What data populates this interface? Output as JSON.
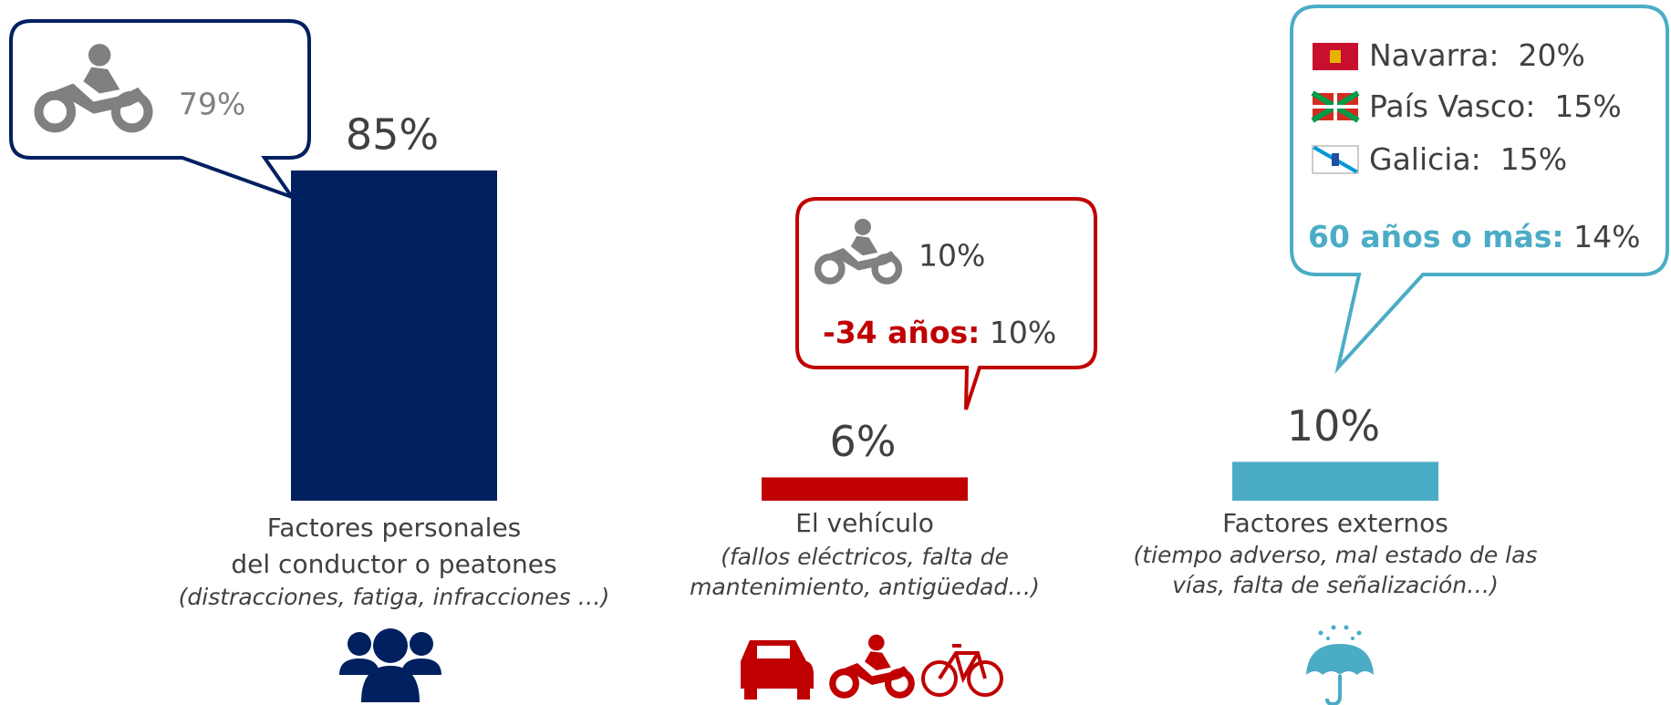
{
  "chart_data": {
    "type": "bar",
    "categories": [
      [
        "Factores personales",
        "del conductor o peatones"
      ],
      [
        "El vehículo"
      ],
      [
        "Factores externos"
      ]
    ],
    "descriptions": [
      [
        "(distracciones, fatiga, infracciones …)"
      ],
      [
        "(fallos eléctricos, falta de",
        "mantenimiento, antigüedad…)"
      ],
      [
        "(tiempo adverso, mal estado de las",
        "vías, falta de señalización…)"
      ]
    ],
    "values": [
      85,
      6,
      10
    ],
    "value_labels": [
      "85%",
      "6%",
      "10%"
    ],
    "colors": [
      "#002060",
      "#c00000",
      "#4bacc6"
    ],
    "callouts": [
      {
        "moto": "79%"
      },
      {
        "moto": "10%",
        "age_label": "-34 años:",
        "age_value": "10%"
      },
      {
        "regions": [
          {
            "name": "Navarra:",
            "value": "20%"
          },
          {
            "name": "País Vasco:",
            "value": "15%"
          },
          {
            "name": "Galicia:",
            "value": "15%"
          }
        ],
        "age_label": "60 años o más:",
        "age_value": "14%"
      }
    ]
  }
}
